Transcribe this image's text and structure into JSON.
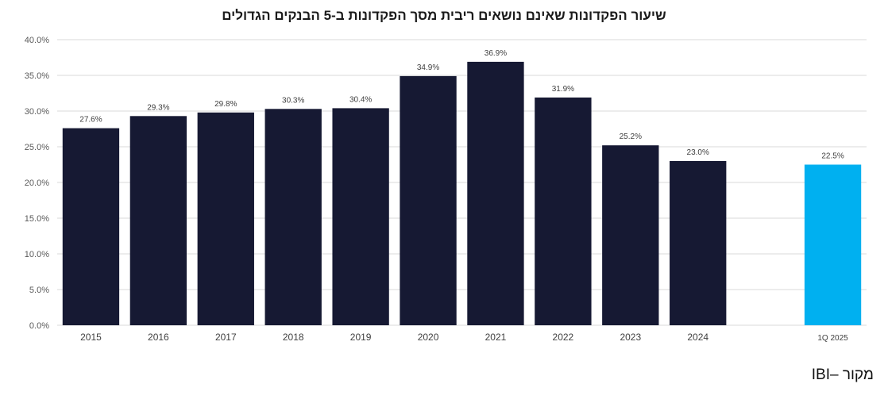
{
  "chart_data": {
    "type": "bar",
    "title": "שיעור הפקדונות שאינם נושאים ריבית מסך הפקדונות ב-5 הבנקים הגדולים",
    "categories": [
      "2015",
      "2016",
      "2017",
      "2018",
      "2019",
      "2020",
      "2021",
      "2022",
      "2023",
      "2024",
      "",
      "1Q 2025"
    ],
    "values": [
      27.6,
      29.3,
      29.8,
      30.3,
      30.4,
      34.9,
      36.9,
      31.9,
      25.2,
      23.0,
      null,
      22.5
    ],
    "data_labels": [
      "27.6%",
      "29.3%",
      "29.8%",
      "30.3%",
      "30.4%",
      "34.9%",
      "36.9%",
      "31.9%",
      "25.2%",
      "23.0%",
      "",
      "22.5%"
    ],
    "bar_colors": [
      "#161933",
      "#161933",
      "#161933",
      "#161933",
      "#161933",
      "#161933",
      "#161933",
      "#161933",
      "#161933",
      "#161933",
      "#161933",
      "#00b0f0"
    ],
    "ylim": [
      0,
      40
    ],
    "y_ticks": [
      "0.0%",
      "5.0%",
      "10.0%",
      "15.0%",
      "20.0%",
      "25.0%",
      "30.0%",
      "35.0%",
      "40.0%"
    ],
    "xlabel": "",
    "ylabel": "",
    "grid": true,
    "gridline_color": "#d9d9d9"
  },
  "source_note": "מקור –IBI"
}
